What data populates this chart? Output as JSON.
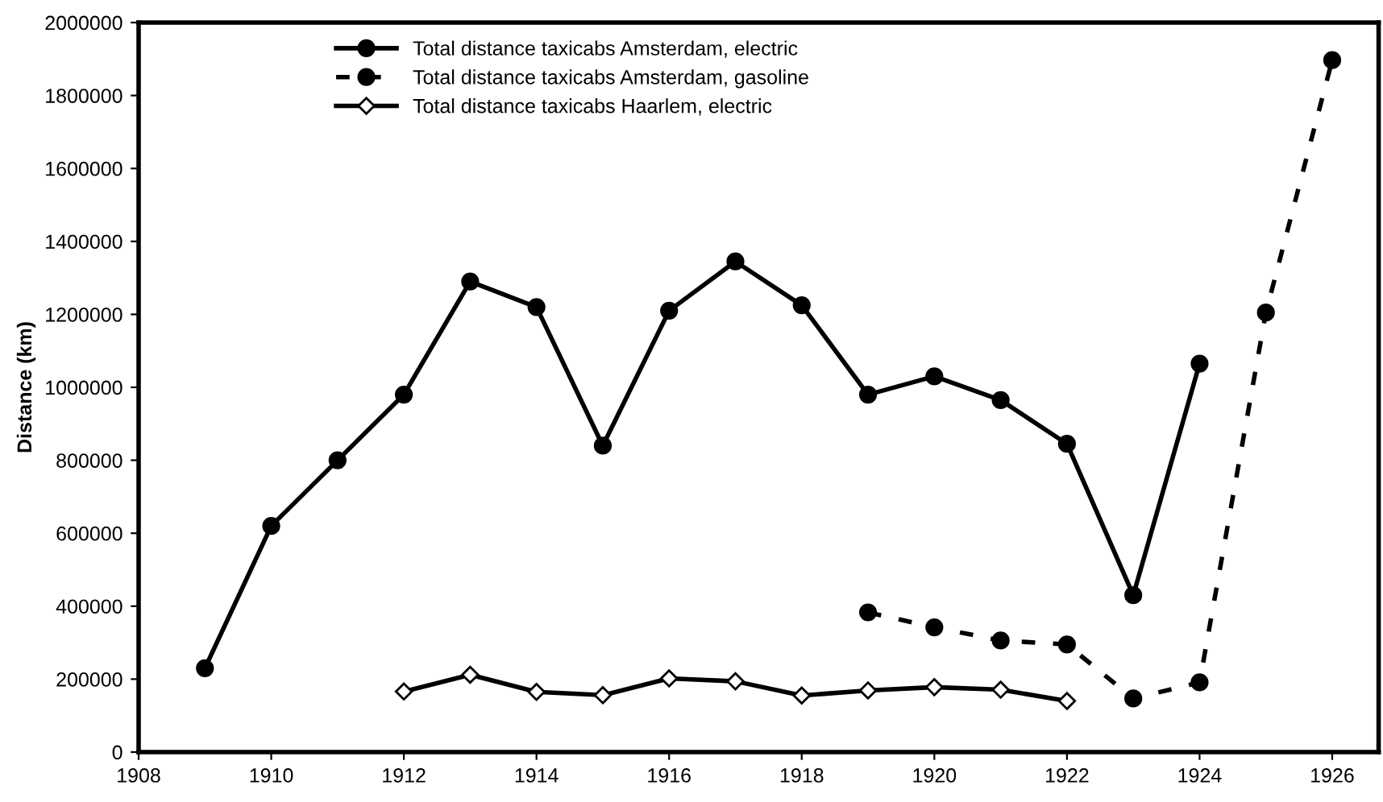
{
  "chart_data": {
    "type": "line",
    "ylabel": "Distance (km)",
    "xlim": [
      1908,
      1926.7
    ],
    "xticks": [
      1908,
      1910,
      1912,
      1914,
      1916,
      1918,
      1920,
      1922,
      1924,
      1926
    ],
    "ylim": [
      0,
      2000000
    ],
    "yticks": [
      0,
      200000,
      400000,
      600000,
      800000,
      1000000,
      1200000,
      1400000,
      1600000,
      1800000,
      2000000
    ],
    "grid": false,
    "legend": "top",
    "series": [
      {
        "name": "Total distance taxicabs Amsterdam, electric",
        "color": "#000000",
        "marker": "circle",
        "line_style": "solid",
        "x": [
          1909,
          1910,
          1911,
          1912,
          1913,
          1914,
          1915,
          1916,
          1917,
          1918,
          1919,
          1920,
          1921,
          1922,
          1923,
          1924
        ],
        "values": [
          230000,
          620000,
          800000,
          980000,
          1290000,
          1220000,
          840000,
          1210000,
          1345000,
          1225000,
          980000,
          1030000,
          965000,
          845000,
          430000,
          1065000
        ]
      },
      {
        "name": "Total distance taxicabs Amsterdam, gasoline",
        "color": "#000000",
        "marker": "circle",
        "line_style": "dashed",
        "x": [
          1919,
          1920,
          1921,
          1922,
          1923,
          1924,
          1925,
          1926
        ],
        "values": [
          383000,
          342000,
          306000,
          295000,
          147000,
          191000,
          1205000,
          1897000
        ]
      },
      {
        "name": "Total distance taxicabs Haarlem, electric",
        "color": "#000000",
        "marker": "diamond",
        "line_style": "solid",
        "x": [
          1912,
          1913,
          1914,
          1915,
          1916,
          1917,
          1918,
          1919,
          1920,
          1921,
          1922
        ],
        "values": [
          166000,
          212000,
          165000,
          156000,
          202000,
          194000,
          155000,
          169000,
          178000,
          171000,
          140000
        ]
      }
    ]
  }
}
